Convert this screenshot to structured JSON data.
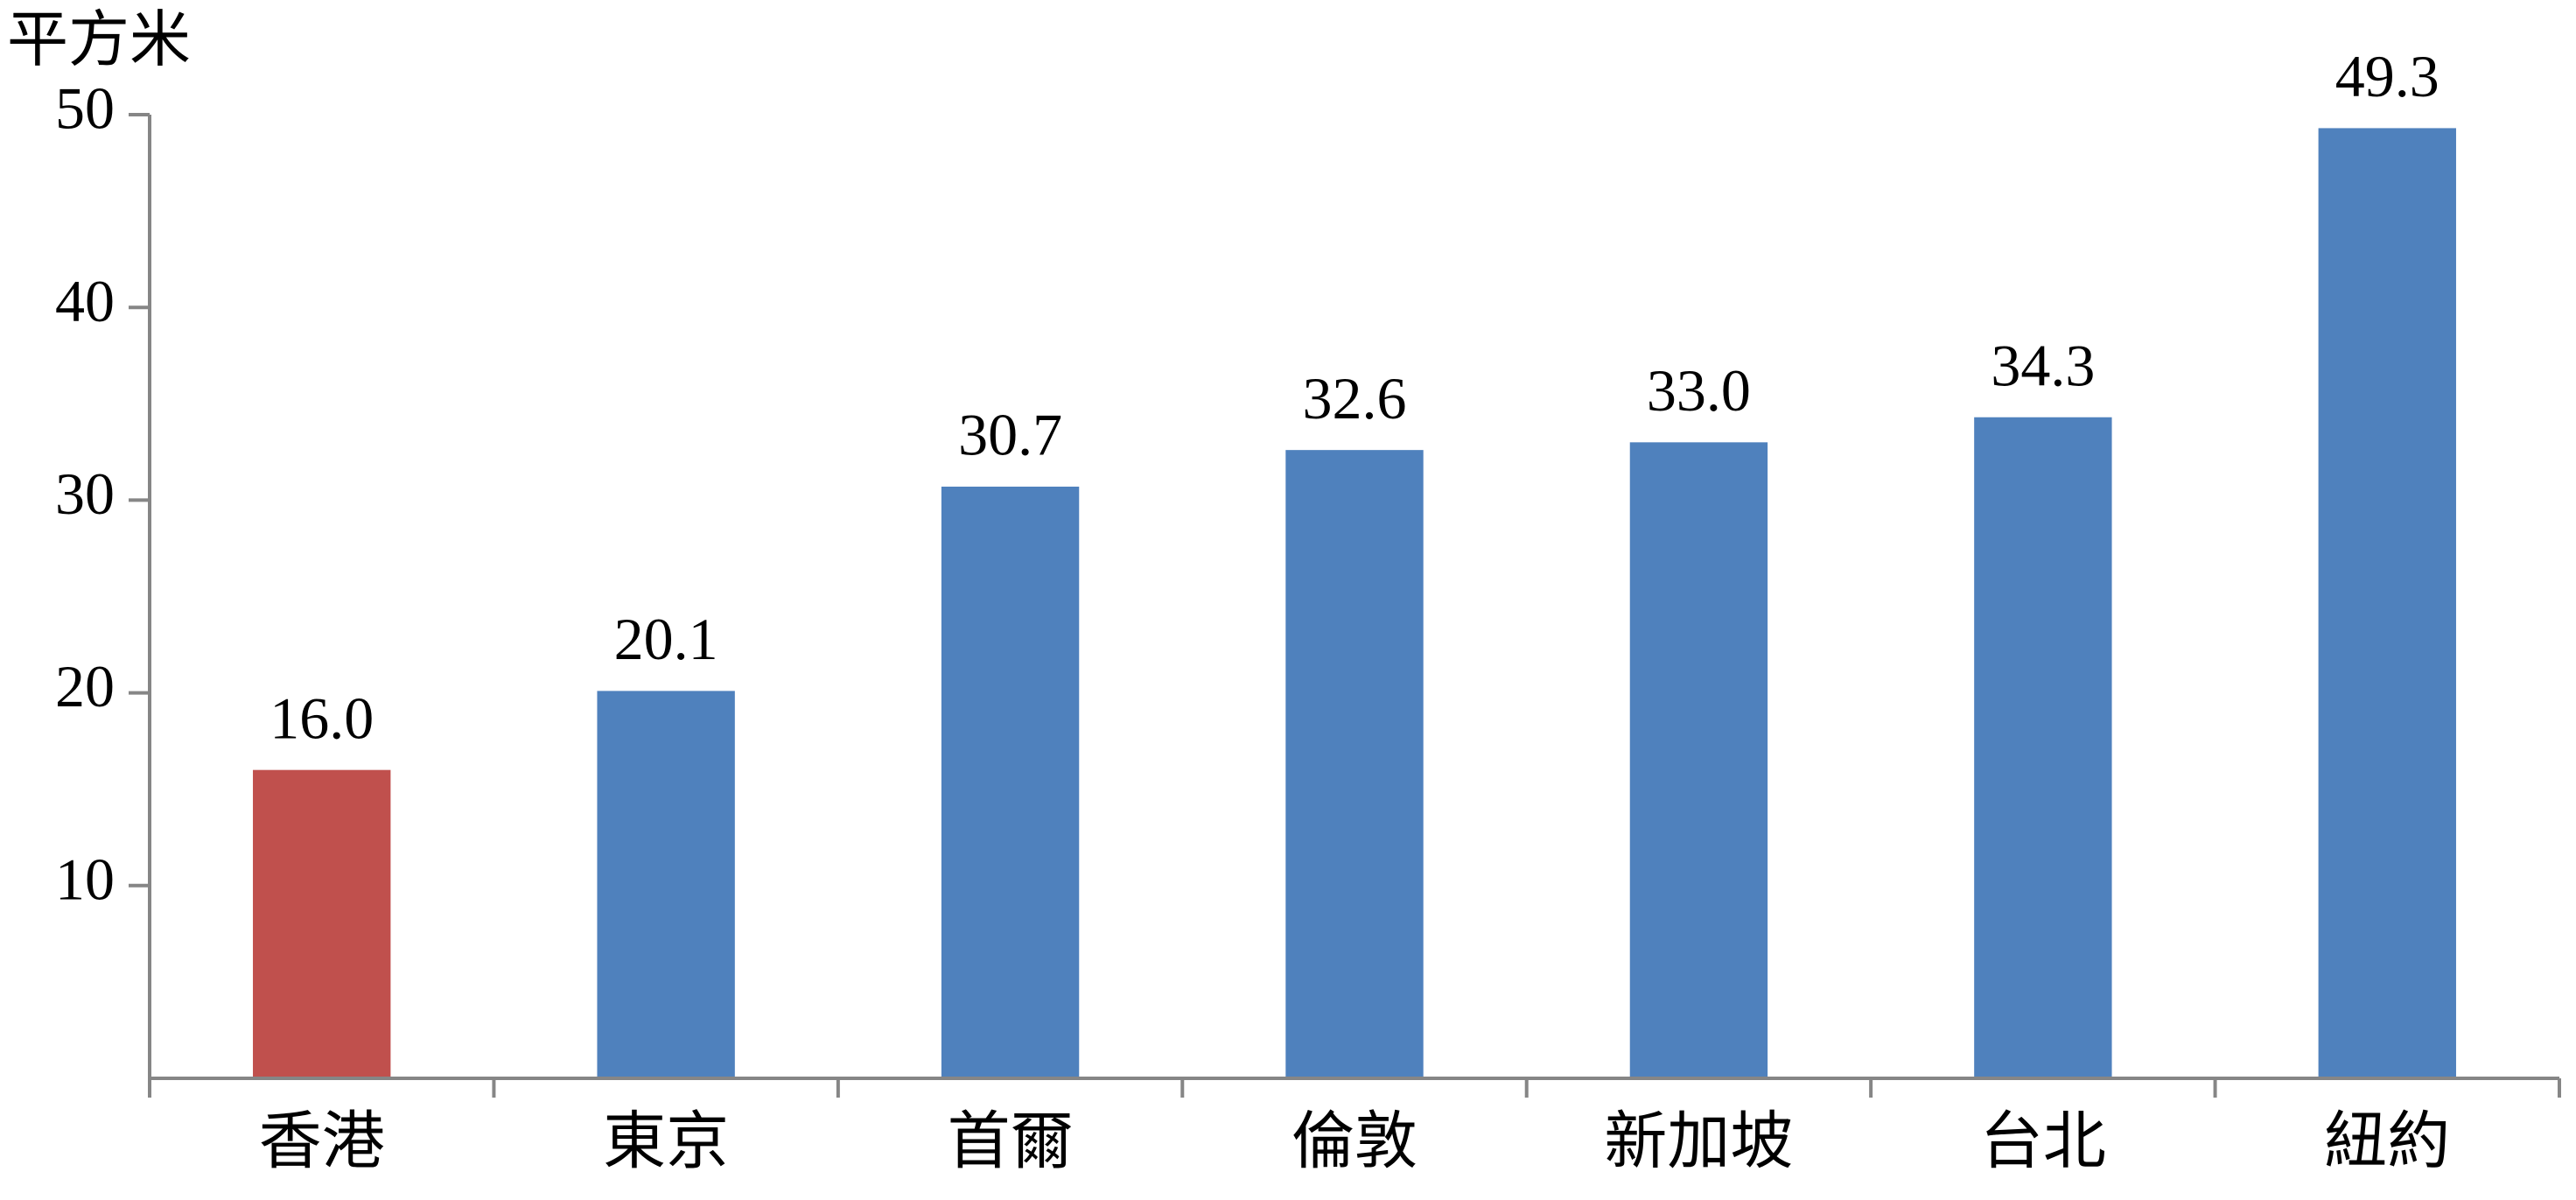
{
  "chart_data": {
    "type": "bar",
    "y_label": "平方米",
    "categories": [
      "香港",
      "東京",
      "首爾",
      "倫敦",
      "新加坡",
      "台北",
      "紐約"
    ],
    "values": [
      16.0,
      20.1,
      30.7,
      32.6,
      33.0,
      34.3,
      49.3
    ],
    "value_labels": [
      "16.0",
      "20.1",
      "30.7",
      "32.6",
      "33.0",
      "34.3",
      "49.3"
    ],
    "colors": [
      "#c0504d",
      "#4f81bd",
      "#4f81bd",
      "#4f81bd",
      "#4f81bd",
      "#4f81bd",
      "#4f81bd"
    ],
    "ylim": [
      0,
      50
    ],
    "yticks": [
      10,
      20,
      30,
      40,
      50
    ]
  }
}
